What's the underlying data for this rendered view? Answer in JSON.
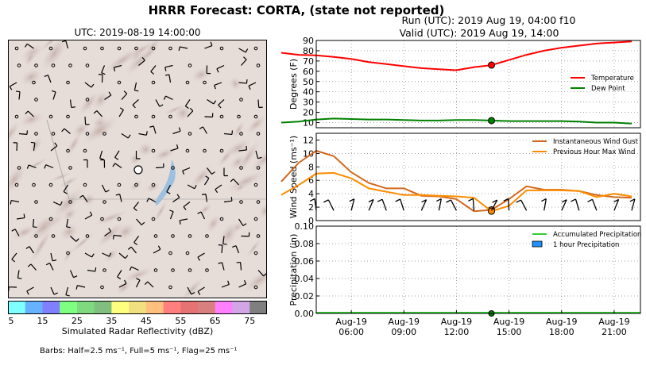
{
  "header": {
    "main_title": "HRRR Forecast: CORTA, (state not reported)",
    "map_title": "UTC: 2019-08-19 14:00:00",
    "run_line": "Run (UTC): 2019 Aug 19, 04:00 f10",
    "valid_line": "Valid (UTC): 2019 Aug 19, 14:00"
  },
  "colorbar": {
    "label": "Simulated Radar Reflectivity (dBZ)",
    "ticks": [
      "5",
      "15",
      "25",
      "35",
      "45",
      "55",
      "65",
      "75"
    ],
    "colors": [
      "#7fffff",
      "#66b2ff",
      "#7f7fff",
      "#7fff7f",
      "#7fd97f",
      "#7fbf7f",
      "#ffff7f",
      "#f2df7f",
      "#ffbf7f",
      "#ff7f7f",
      "#e67373",
      "#d97f7f",
      "#ff7fff",
      "#d2a6e6",
      "#7f7f7f"
    ]
  },
  "barbs_note": "Barbs: Half=2.5 ms⁻¹, Full=5 ms⁻¹, Flag=25 ms⁻¹",
  "chart_data": [
    {
      "type": "line",
      "panel": "temperature",
      "ylabel": "Degrees (F)",
      "ylim": [
        5,
        90
      ],
      "yticks": [
        10,
        20,
        30,
        40,
        50,
        60,
        70,
        80,
        90
      ],
      "x_hours": [
        2,
        3,
        4,
        5,
        6,
        7,
        8,
        9,
        10,
        11,
        12,
        13,
        14,
        15,
        16,
        17,
        18,
        19,
        20,
        21,
        22
      ],
      "series": [
        {
          "name": "Temperature",
          "color": "#ff0000",
          "values": [
            78,
            76,
            75.5,
            74,
            72,
            69,
            67,
            65,
            63,
            62,
            61,
            64,
            66,
            71,
            76,
            80,
            83,
            85,
            87,
            88,
            89
          ]
        },
        {
          "name": "Dew Point",
          "color": "#008000",
          "values": [
            10,
            11,
            13,
            14,
            13.5,
            13,
            13,
            12.5,
            12,
            12,
            12.5,
            12.5,
            12,
            11.5,
            11.5,
            11.5,
            11.5,
            11,
            10,
            10,
            9
          ]
        }
      ],
      "marker_hour": 14,
      "legend_position": "middle-right",
      "grid": true
    },
    {
      "type": "line",
      "panel": "wind",
      "ylabel": "Wind Speed (ms⁻¹)",
      "ylim": [
        0,
        13
      ],
      "yticks": [
        0,
        2,
        4,
        6,
        8,
        10,
        12
      ],
      "x_hours": [
        2,
        3,
        4,
        5,
        6,
        7,
        8,
        9,
        10,
        11,
        12,
        13,
        14,
        15,
        16,
        17,
        18,
        19,
        20,
        21,
        22
      ],
      "series": [
        {
          "name": "Instantaneous Wind Gust",
          "color": "#d2691e",
          "values": [
            5.8,
            8.6,
            10.4,
            9.6,
            7.2,
            5.6,
            4.8,
            4.8,
            3.7,
            3.6,
            3.2,
            1.4,
            1.6,
            3.2,
            5.1,
            4.6,
            4.6,
            4.4,
            3.8,
            3.5,
            3.4
          ]
        },
        {
          "name": "Previous Hour Max Wind",
          "color": "#ff8c00",
          "values": [
            3.8,
            5.3,
            7.0,
            7.1,
            6.3,
            4.8,
            4.3,
            3.8,
            3.8,
            3.7,
            3.6,
            3.4,
            1.4,
            2.2,
            4.5,
            4.5,
            4.5,
            4.4,
            3.5,
            4.0,
            3.6
          ]
        }
      ],
      "marker_hour": 14,
      "legend_position": "top-right",
      "grid": true
    },
    {
      "type": "line",
      "panel": "precipitation",
      "ylabel": "Precipitation (in)",
      "ylim": [
        0,
        0.1
      ],
      "yticks": [
        "0.00",
        "0.02",
        "0.04",
        "0.06",
        "0.08",
        "0.10"
      ],
      "x_hours": [
        2,
        3,
        4,
        5,
        6,
        7,
        8,
        9,
        10,
        11,
        12,
        13,
        14,
        15,
        16,
        17,
        18,
        19,
        20,
        21,
        22
      ],
      "series": [
        {
          "name": "Accumulated Precipitation",
          "color": "#32cd32",
          "values": [
            0,
            0,
            0,
            0,
            0,
            0,
            0,
            0,
            0,
            0,
            0,
            0,
            0,
            0,
            0,
            0,
            0,
            0,
            0,
            0,
            0
          ]
        },
        {
          "name": "1 hour Precipitation",
          "color": "#1e90ff",
          "values": [
            0,
            0,
            0,
            0,
            0,
            0,
            0,
            0,
            0,
            0,
            0,
            0,
            0,
            0,
            0,
            0,
            0,
            0,
            0,
            0,
            0
          ]
        }
      ],
      "marker_hour": 14,
      "legend_position": "top-right",
      "grid": true
    }
  ],
  "x_axis": {
    "ticks": [
      {
        "hour": 6,
        "date": "Aug-19",
        "time": "06:00"
      },
      {
        "hour": 9,
        "date": "Aug-19",
        "time": "09:00"
      },
      {
        "hour": 12,
        "date": "Aug-19",
        "time": "12:00"
      },
      {
        "hour": 15,
        "date": "Aug-19",
        "time": "15:00"
      },
      {
        "hour": 18,
        "date": "Aug-19",
        "time": "18:00"
      },
      {
        "hour": 21,
        "date": "Aug-19",
        "time": "21:00"
      }
    ],
    "range_hours": [
      4,
      22.5
    ]
  }
}
